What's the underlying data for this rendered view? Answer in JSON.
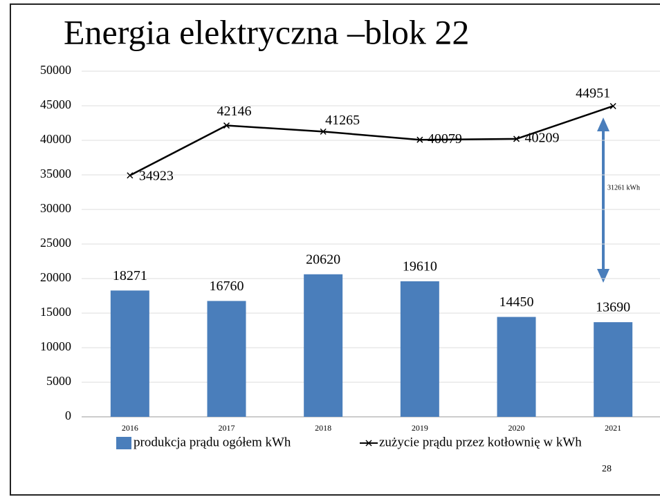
{
  "chart_data": {
    "type": "bar",
    "title": "Energia elektryczna –blok 22",
    "categories": [
      "2016",
      "2017",
      "2018",
      "2019",
      "2020",
      "2021"
    ],
    "series": [
      {
        "name": "produkcja prądu ogółem kWh",
        "type": "bar",
        "color": "#4a7ebb",
        "values": [
          18271,
          16760,
          20620,
          19610,
          14450,
          13690
        ]
      },
      {
        "name": "zużycie prądu przez kotłownię w kWh",
        "type": "line",
        "color": "#000000",
        "values": [
          34923,
          42146,
          41265,
          40079,
          40209,
          44951
        ]
      }
    ],
    "ylim": [
      0,
      50000
    ],
    "yticks": [
      0,
      5000,
      10000,
      15000,
      20000,
      25000,
      30000,
      35000,
      40000,
      45000,
      50000
    ],
    "grid": true,
    "legend": "bottom",
    "annotation": "31261 kWh",
    "page_number": "28"
  }
}
